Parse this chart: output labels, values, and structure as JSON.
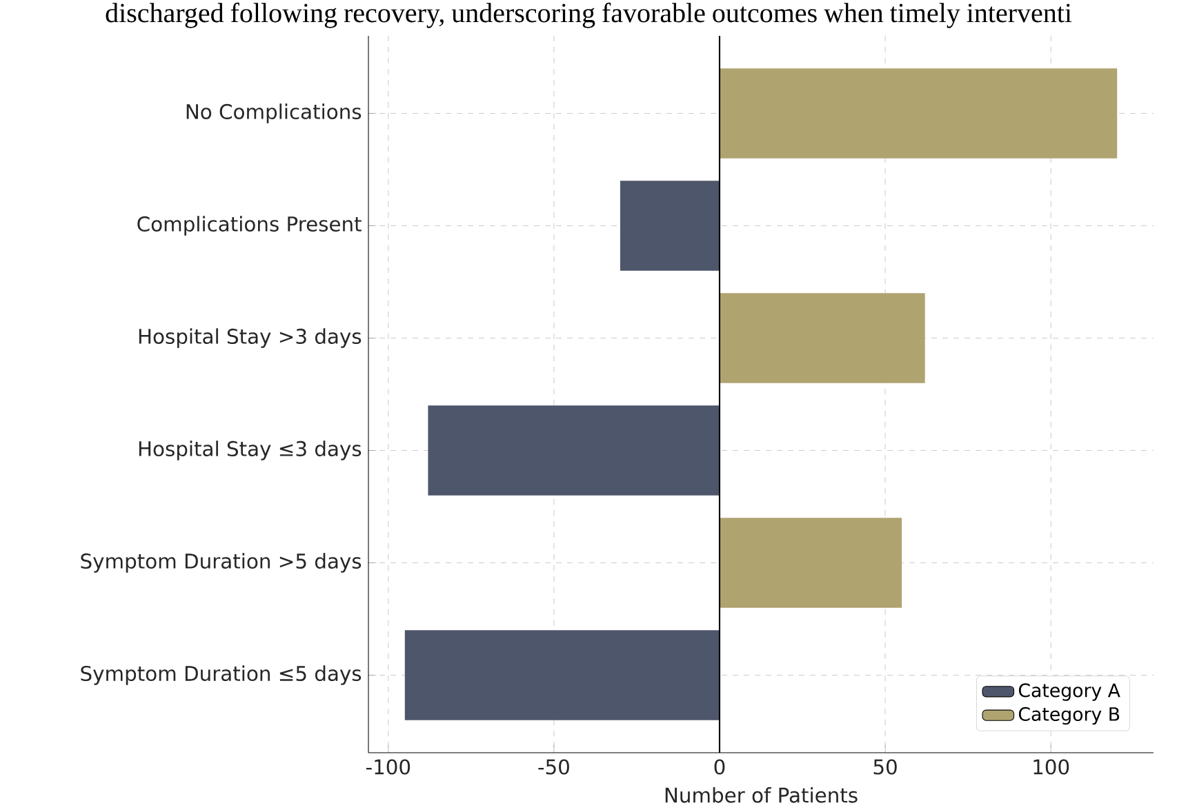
{
  "chart_data": {
    "type": "bar",
    "orientation": "horizontal",
    "title": "discharged following recovery, underscoring favorable outcomes when timely interventi",
    "xlabel": "Number of Patients",
    "categories": [
      "No Complications",
      "Complications Present",
      "Hospital Stay >3 days",
      "Hospital Stay ≤3 days",
      "Symptom Duration >5 days",
      "Symptom Duration ≤5 days"
    ],
    "series": [
      {
        "name": "Category A",
        "color": "#4e566b",
        "values": [
          null,
          -30,
          null,
          -88,
          null,
          -95
        ]
      },
      {
        "name": "Category B",
        "color": "#afa370",
        "values": [
          120,
          null,
          62,
          null,
          55,
          null
        ]
      }
    ],
    "xlim": [
      -106,
      131
    ],
    "xticks": [
      -100,
      -50,
      0,
      50,
      100
    ],
    "grid": true,
    "legend": "bottom right",
    "ref_lines": [
      {
        "axis": "x",
        "value": 0,
        "color": "#000000"
      }
    ]
  }
}
